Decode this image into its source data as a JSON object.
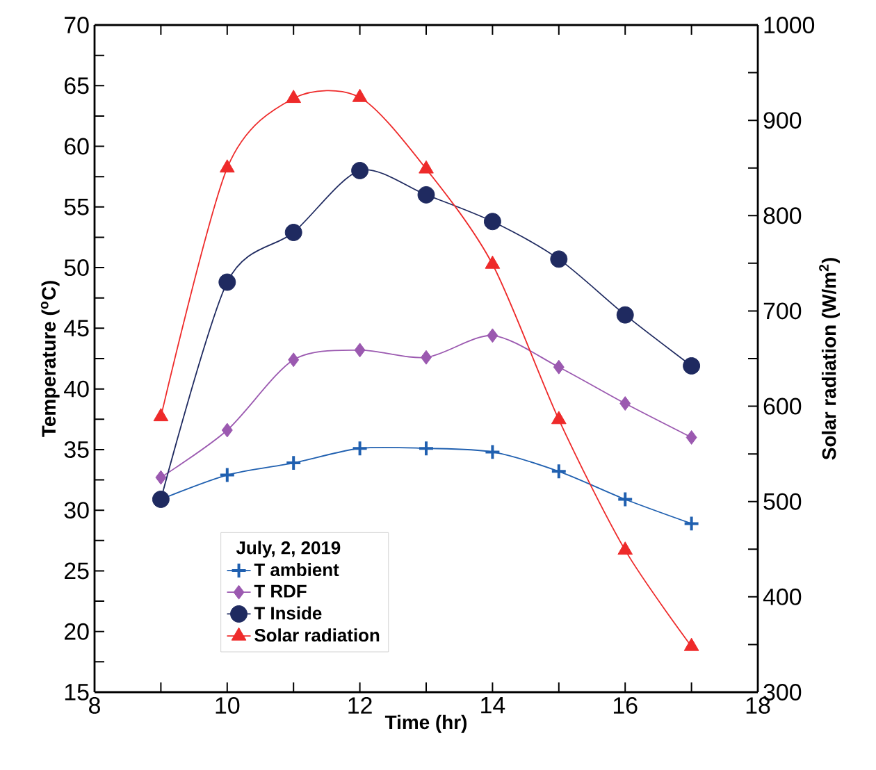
{
  "chart_data": {
    "type": "line",
    "xlabel": "Time (hr)",
    "ylabel": "Temperature ($^{o}$C)",
    "y2label": "Solar radiation (W/m$^{2}$)",
    "legend_title": "July, 2, 2019",
    "legend": "bottom left",
    "grid": false,
    "x": [
      9,
      10,
      11,
      12,
      13,
      14,
      15,
      16,
      17
    ],
    "xlim": [
      8,
      18
    ],
    "ylim": [
      15,
      70
    ],
    "y2lim": [
      300,
      1000
    ],
    "xticks": [
      8,
      {
        "value": 9,
        "label": null
      },
      10,
      {
        "value": 11,
        "label": null
      },
      12,
      {
        "value": 13,
        "label": null
      },
      14,
      {
        "value": 15,
        "label": null
      },
      16,
      {
        "value": 17,
        "label": null
      },
      18
    ],
    "yticks": [
      15,
      {
        "value": 17.5,
        "label": null
      },
      20,
      {
        "value": 22.5,
        "label": null
      },
      25,
      {
        "value": 27.5,
        "label": null
      },
      30,
      {
        "value": 32.5,
        "label": null
      },
      35,
      {
        "value": 37.5,
        "label": null
      },
      40,
      {
        "value": 42.5,
        "label": null
      },
      45,
      {
        "value": 47.5,
        "label": null
      },
      50,
      {
        "value": 52.5,
        "label": null
      },
      55,
      {
        "value": 57.5,
        "label": null
      },
      60,
      {
        "value": 62.5,
        "label": null
      },
      65,
      {
        "value": 67.5,
        "label": null
      },
      70
    ],
    "y2ticks": [
      300,
      {
        "value": 350,
        "label": null
      },
      400,
      {
        "value": 450,
        "label": null
      },
      500,
      {
        "value": 550,
        "label": null
      },
      600,
      {
        "value": 650,
        "label": null
      },
      700,
      {
        "value": 750,
        "label": null
      },
      800,
      {
        "value": 850,
        "label": null
      },
      900,
      {
        "value": 950,
        "label": null
      },
      1000
    ],
    "series": [
      {
        "name": "T ambient",
        "color": "#2060b0",
        "marker": "cross",
        "values": [
          30.9,
          32.9,
          33.9,
          35.1,
          35.1,
          34.8,
          33.2,
          30.9,
          28.9
        ]
      },
      {
        "name": "T RDF",
        "color": "#9b59b0",
        "marker": "diamond",
        "values": [
          32.7,
          36.6,
          42.4,
          43.2,
          42.6,
          44.4,
          41.8,
          38.8,
          36.0
        ]
      },
      {
        "name": "T Inside",
        "color": "#1f2a60",
        "marker": "circle",
        "values": [
          30.9,
          48.8,
          52.9,
          58.0,
          56.0,
          53.8,
          50.7,
          46.1,
          41.9
        ]
      },
      {
        "name": "Solar radiation",
        "color": "#ee2a2a",
        "marker": "triangle",
        "axis": "y2",
        "values": [
          589,
          850,
          923,
          924,
          849,
          749,
          586,
          449,
          348
        ]
      }
    ]
  }
}
